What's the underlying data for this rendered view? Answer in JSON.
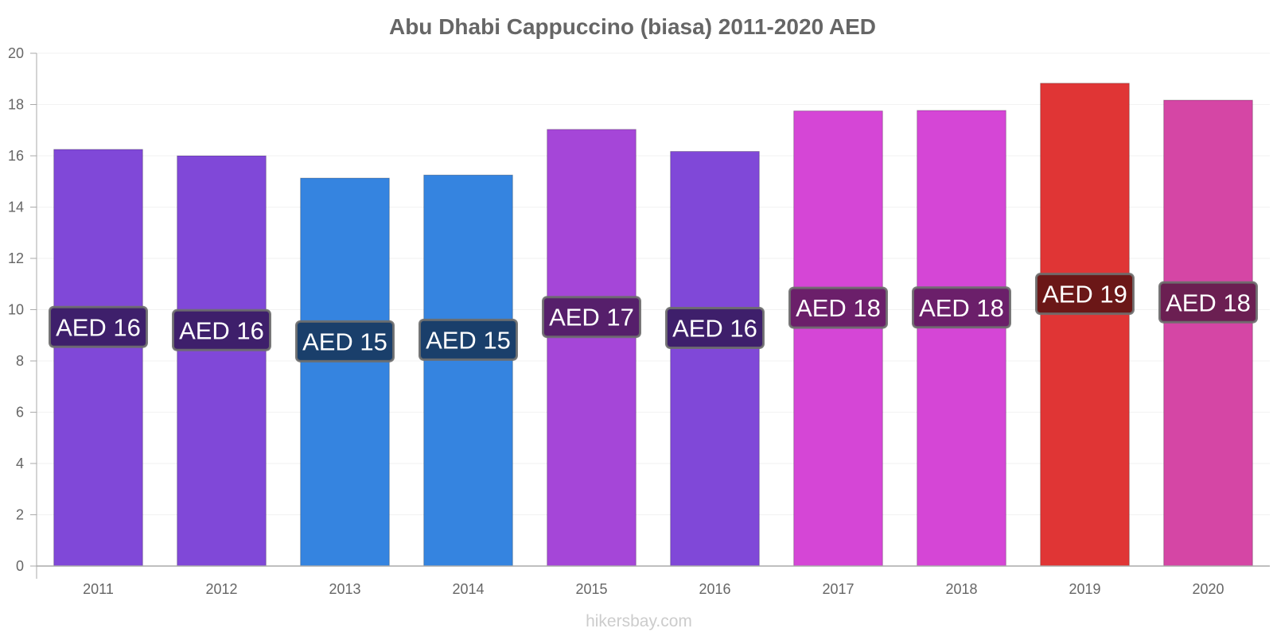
{
  "watermark": "hikersbay.com",
  "chart_data": {
    "type": "bar",
    "title": "Abu Dhabi Cappuccino (biasa) 2011-2020 AED",
    "categories": [
      "2011",
      "2012",
      "2013",
      "2014",
      "2015",
      "2016",
      "2017",
      "2018",
      "2019",
      "2020"
    ],
    "values": [
      16.25,
      16.0,
      15.13,
      15.25,
      17.03,
      16.17,
      17.75,
      17.77,
      18.83,
      18.17
    ],
    "data_labels": [
      "AED 16",
      "AED 16",
      "AED 15",
      "AED 15",
      "AED 17",
      "AED 16",
      "AED 18",
      "AED 18",
      "AED 19",
      "AED 18"
    ],
    "bar_colors": [
      "#8048d8",
      "#8048d8",
      "#3584e0",
      "#3584e0",
      "#a546d8",
      "#8048d8",
      "#d546d6",
      "#d546d6",
      "#e03535",
      "#d546a5"
    ],
    "label_bg_colors": [
      "#3e1f6b",
      "#3e1f6b",
      "#1a3f6b",
      "#1a3f6b",
      "#561f6b",
      "#3e1f6b",
      "#6b1f6a",
      "#6b1f6a",
      "#6b1717",
      "#6b1f52"
    ],
    "y_ticks": [
      0,
      2,
      4,
      6,
      8,
      10,
      12,
      14,
      16,
      18,
      20
    ],
    "ylim": [
      0,
      20
    ],
    "xlabel": "",
    "ylabel": "",
    "grid": true,
    "legend": false
  }
}
